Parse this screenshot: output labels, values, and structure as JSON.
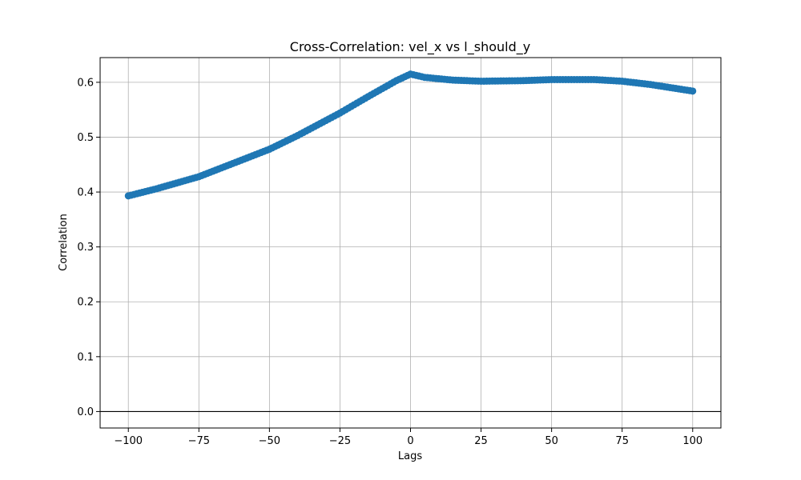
{
  "chart_data": {
    "type": "scatter",
    "title": "Cross-Correlation: vel_x vs l_should_y",
    "xlabel": "Lags",
    "ylabel": "Correlation",
    "xlim": [
      -110,
      110
    ],
    "ylim": [
      -0.03,
      0.645
    ],
    "x_ticks": [
      -100,
      -75,
      -50,
      -25,
      0,
      25,
      50,
      75,
      100
    ],
    "x_tick_labels": [
      "−100",
      "−75",
      "−50",
      "−25",
      "0",
      "25",
      "50",
      "75",
      "100"
    ],
    "y_ticks": [
      0.0,
      0.1,
      0.2,
      0.3,
      0.4,
      0.5,
      0.6
    ],
    "y_tick_labels": [
      "0.0",
      "0.1",
      "0.2",
      "0.3",
      "0.4",
      "0.5",
      "0.6"
    ],
    "grid": true,
    "horizontal_line": 0,
    "marker_color": "#1f77b4",
    "line_color": "#1f77b4",
    "series": [
      {
        "x_start": -100,
        "x_end": 100,
        "x_step": 1,
        "anchors": [
          [
            -100,
            0.393
          ],
          [
            -90,
            0.406
          ],
          [
            -75,
            0.428
          ],
          [
            -50,
            0.478
          ],
          [
            -40,
            0.503
          ],
          [
            -25,
            0.544
          ],
          [
            -15,
            0.574
          ],
          [
            -5,
            0.603
          ],
          [
            0,
            0.615
          ],
          [
            5,
            0.609
          ],
          [
            15,
            0.604
          ],
          [
            25,
            0.602
          ],
          [
            40,
            0.603
          ],
          [
            50,
            0.605
          ],
          [
            65,
            0.605
          ],
          [
            75,
            0.602
          ],
          [
            85,
            0.596
          ],
          [
            100,
            0.584
          ]
        ]
      }
    ]
  }
}
